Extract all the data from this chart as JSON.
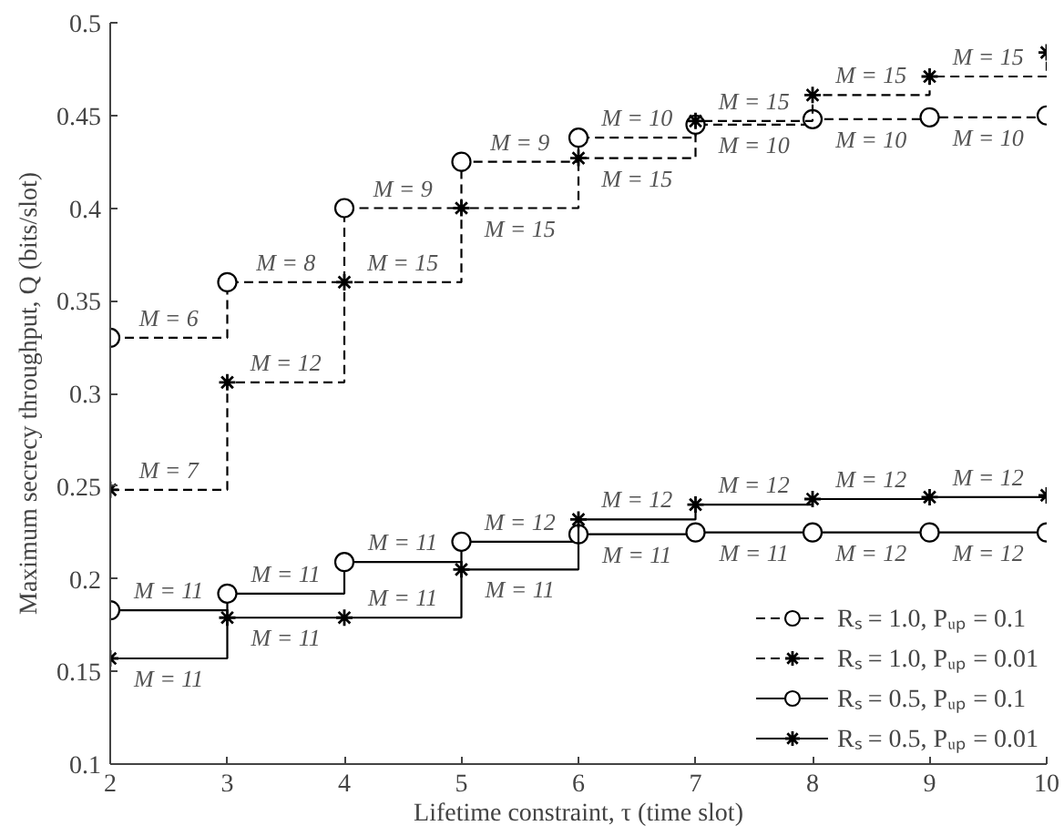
{
  "chart_data": {
    "type": "step",
    "xlabel": "Lifetime constraint, τ (time slot)",
    "ylabel": "Maximum secrecy throughput, Q (bits/slot)",
    "x": [
      2,
      3,
      4,
      5,
      6,
      7,
      8,
      9,
      10
    ],
    "xlim": [
      2,
      10
    ],
    "xticks": [
      2,
      3,
      4,
      5,
      6,
      7,
      8,
      9,
      10
    ],
    "ylim": [
      0.1,
      0.5
    ],
    "yticks": [
      0.1,
      0.15,
      0.2,
      0.25,
      0.3,
      0.35,
      0.4,
      0.45,
      0.5
    ],
    "grid": false,
    "legend": "bottom right",
    "series": [
      {
        "name": "Rₛ = 1.0, Pᵤₚ = 0.1",
        "color": "#000000",
        "line_style": "dashed",
        "marker": "circle",
        "values": [
          0.33,
          0.36,
          0.4,
          0.425,
          0.438,
          0.445,
          0.448,
          0.449,
          0.45
        ]
      },
      {
        "name": "Rₛ = 1.0, Pᵤₚ = 0.01",
        "color": "#000000",
        "line_style": "dashed",
        "marker": "cross",
        "values": [
          0.248,
          0.306,
          0.36,
          0.4,
          0.427,
          0.447,
          0.461,
          0.471,
          0.484
        ]
      },
      {
        "name": "Rₛ = 0.5, Pᵤₚ = 0.1",
        "color": "#000000",
        "line_style": "solid",
        "marker": "circle",
        "values": [
          0.183,
          0.192,
          0.209,
          0.22,
          0.224,
          0.225,
          0.225,
          0.225,
          0.225
        ]
      },
      {
        "name": "Rₛ = 0.5, Pᵤₚ = 0.01",
        "color": "#000000",
        "line_style": "solid",
        "marker": "cross",
        "values": [
          0.157,
          0.179,
          0.179,
          0.205,
          0.232,
          0.24,
          0.243,
          0.244,
          0.245
        ]
      }
    ],
    "annotations": [
      {
        "text": "M = 6",
        "x": 2,
        "y": 0.33
      },
      {
        "text": "M = 8",
        "x": 3,
        "y": 0.36
      },
      {
        "text": "M = 9",
        "x": 4,
        "y": 0.4
      },
      {
        "text": "M = 9",
        "x": 5,
        "y": 0.425
      },
      {
        "text": "M = 10",
        "x": 6,
        "y": 0.438
      },
      {
        "text": "M = 10",
        "x": 7,
        "y": 0.445
      },
      {
        "text": "M = 10",
        "x": 8,
        "y": 0.448
      },
      {
        "text": "M = 10",
        "x": 9,
        "y": 0.449
      },
      {
        "text": "M = 7",
        "x": 2,
        "y": 0.248
      },
      {
        "text": "M = 12",
        "x": 3,
        "y": 0.306
      },
      {
        "text": "M = 15",
        "x": 4,
        "y": 0.36
      },
      {
        "text": "M = 15",
        "x": 5,
        "y": 0.4
      },
      {
        "text": "M = 15",
        "x": 6,
        "y": 0.427
      },
      {
        "text": "M = 15",
        "x": 7,
        "y": 0.447
      },
      {
        "text": "M = 15",
        "x": 8,
        "y": 0.461
      },
      {
        "text": "M = 15",
        "x": 9,
        "y": 0.471
      },
      {
        "text": "M = 11",
        "x": 2,
        "y": 0.183
      },
      {
        "text": "M = 11",
        "x": 3,
        "y": 0.192
      },
      {
        "text": "M = 11",
        "x": 4,
        "y": 0.209
      },
      {
        "text": "M = 12",
        "x": 5,
        "y": 0.22
      },
      {
        "text": "M = 11",
        "x": 6,
        "y": 0.224
      },
      {
        "text": "M = 11",
        "x": 7,
        "y": 0.225
      },
      {
        "text": "M = 12",
        "x": 8,
        "y": 0.225
      },
      {
        "text": "M = 12",
        "x": 9,
        "y": 0.225
      },
      {
        "text": "M = 11",
        "x": 2,
        "y": 0.157
      },
      {
        "text": "M = 11",
        "x": 3,
        "y": 0.179
      },
      {
        "text": "M = 11",
        "x": 4,
        "y": 0.179
      },
      {
        "text": "M = 11",
        "x": 5,
        "y": 0.205
      },
      {
        "text": "M = 12",
        "x": 6,
        "y": 0.232
      },
      {
        "text": "M = 12",
        "x": 7,
        "y": 0.24
      },
      {
        "text": "M = 12",
        "x": 8,
        "y": 0.243
      },
      {
        "text": "M = 12",
        "x": 9,
        "y": 0.244
      }
    ]
  }
}
